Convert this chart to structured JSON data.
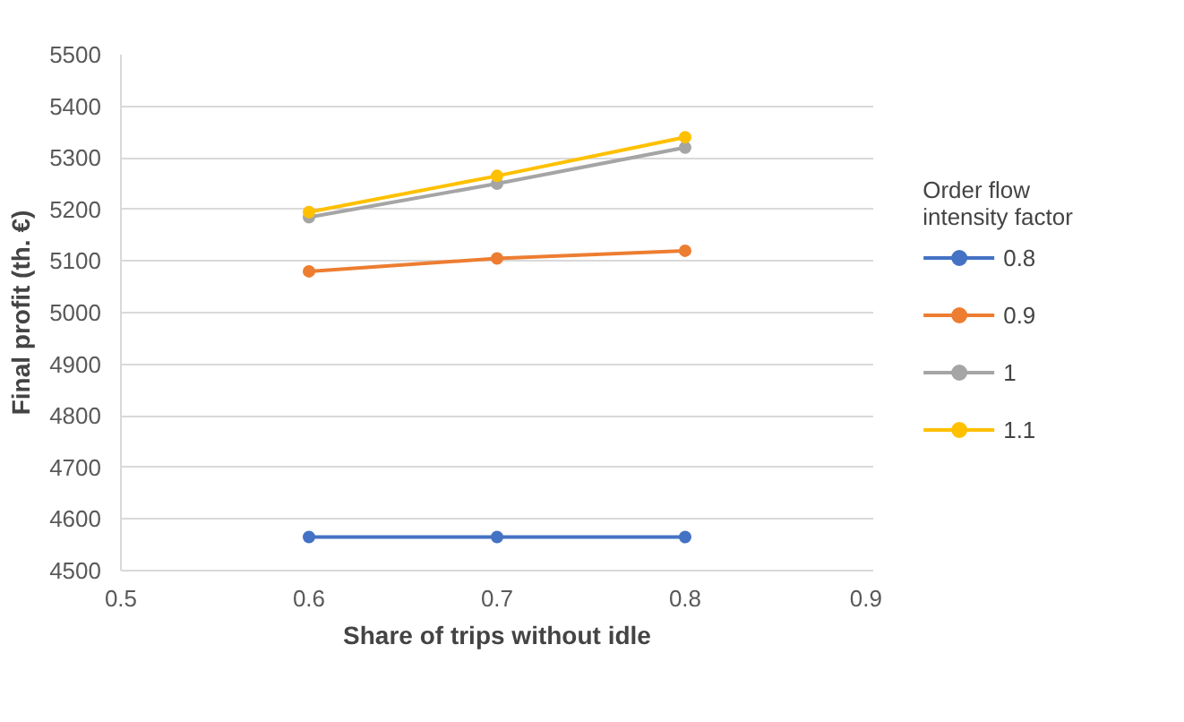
{
  "chart_data": {
    "type": "line",
    "xlabel": "Share of trips without idle",
    "ylabel": "Final profit (th. €)",
    "legend_title": "Order flow intensity factor",
    "x": [
      0.6,
      0.7,
      0.8
    ],
    "series": [
      {
        "name": "0.8",
        "color": "#4472c4",
        "values": [
          4565,
          4565,
          4565
        ]
      },
      {
        "name": "0.9",
        "color": "#ed7d31",
        "values": [
          5080,
          5105,
          5120
        ]
      },
      {
        "name": "1",
        "color": "#a5a5a5",
        "values": [
          5185,
          5250,
          5320
        ]
      },
      {
        "name": "1.1",
        "color": "#ffc000",
        "values": [
          5195,
          5265,
          5340
        ]
      }
    ],
    "xlim": [
      0.5,
      0.9
    ],
    "xticks": [
      0.5,
      0.6,
      0.7,
      0.8,
      0.9
    ],
    "ylim": [
      4500,
      5500
    ],
    "yticks": [
      4500,
      4600,
      4700,
      4800,
      4900,
      5000,
      5100,
      5200,
      5300,
      5400,
      5500
    ],
    "grid": "y",
    "legend": "right",
    "marker": "circle",
    "line_style": "solid"
  }
}
